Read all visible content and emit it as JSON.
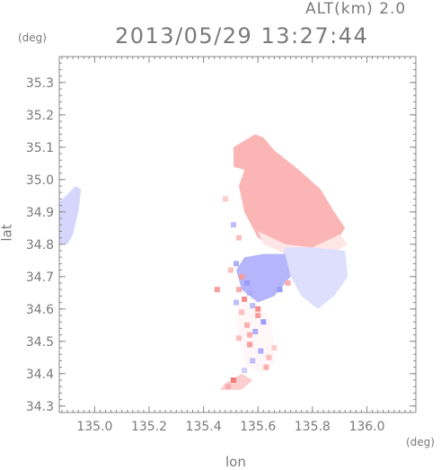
{
  "header": {
    "altitude": "ALT(km) 2.0",
    "datetime": "2013/05/29 13:27:44"
  },
  "chart_data": {
    "type": "heatmap",
    "title": "2013/05/29 13:27:44",
    "subtitle": "ALT(km) 2.0",
    "xlabel": "lon",
    "ylabel": "lat",
    "x_unit": "(deg)",
    "y_unit": "(deg)",
    "xlim": [
      134.87,
      136.18
    ],
    "ylim": [
      34.28,
      35.38
    ],
    "xticks": [
      "135.0",
      "135.2",
      "135.4",
      "135.6",
      "135.8",
      "136.0"
    ],
    "xtick_values": [
      135.0,
      135.2,
      135.4,
      135.6,
      135.8,
      136.0
    ],
    "yticks": [
      "34.3",
      "34.4",
      "34.5",
      "34.6",
      "34.7",
      "34.8",
      "34.9",
      "35.0",
      "35.1",
      "35.2",
      "35.3"
    ],
    "ytick_values": [
      34.3,
      34.4,
      34.5,
      34.6,
      34.7,
      34.8,
      34.9,
      35.0,
      35.1,
      35.2,
      35.3
    ],
    "colormap": {
      "negative": "#5a5af5",
      "zero": "#ffffff",
      "positive": "#f55a5a"
    },
    "regions": [
      {
        "name": "west-patch",
        "points": [
          [
            134.87,
            34.93
          ],
          [
            134.93,
            34.98
          ],
          [
            134.95,
            34.97
          ],
          [
            134.94,
            34.9
          ],
          [
            134.92,
            34.83
          ],
          [
            134.9,
            34.8
          ],
          [
            134.87,
            34.8
          ]
        ],
        "value": -0.25
      },
      {
        "name": "north-red",
        "points": [
          [
            135.59,
            35.14
          ],
          [
            135.62,
            35.13
          ],
          [
            135.66,
            35.09
          ],
          [
            135.75,
            35.03
          ],
          [
            135.83,
            34.97
          ],
          [
            135.88,
            34.9
          ],
          [
            135.92,
            34.85
          ],
          [
            135.88,
            34.8
          ],
          [
            135.78,
            34.78
          ],
          [
            135.68,
            34.78
          ],
          [
            135.6,
            34.82
          ],
          [
            135.55,
            34.9
          ],
          [
            135.53,
            34.98
          ],
          [
            135.55,
            35.03
          ],
          [
            135.51,
            35.04
          ],
          [
            135.51,
            35.1
          ],
          [
            135.55,
            35.12
          ]
        ],
        "value": 0.45
      },
      {
        "name": "north-red-light",
        "points": [
          [
            135.6,
            34.84
          ],
          [
            135.7,
            34.8
          ],
          [
            135.8,
            34.79
          ],
          [
            135.9,
            34.83
          ],
          [
            135.93,
            34.8
          ],
          [
            135.85,
            34.76
          ],
          [
            135.7,
            34.77
          ],
          [
            135.62,
            34.8
          ]
        ],
        "value": 0.15
      },
      {
        "name": "east-blue",
        "points": [
          [
            135.7,
            34.79
          ],
          [
            135.8,
            34.79
          ],
          [
            135.92,
            34.78
          ],
          [
            135.93,
            34.7
          ],
          [
            135.88,
            34.64
          ],
          [
            135.82,
            34.6
          ],
          [
            135.76,
            34.64
          ],
          [
            135.72,
            34.7
          ],
          [
            135.68,
            34.74
          ]
        ],
        "value": -0.2
      },
      {
        "name": "central-blue",
        "points": [
          [
            135.55,
            34.76
          ],
          [
            135.62,
            34.77
          ],
          [
            135.7,
            34.77
          ],
          [
            135.72,
            34.7
          ],
          [
            135.66,
            34.64
          ],
          [
            135.6,
            34.62
          ],
          [
            135.54,
            34.66
          ],
          [
            135.52,
            34.72
          ]
        ],
        "value": -0.45
      },
      {
        "name": "south-speckle",
        "points": [
          [
            135.53,
            34.62
          ],
          [
            135.58,
            34.62
          ],
          [
            135.64,
            34.58
          ],
          [
            135.66,
            34.5
          ],
          [
            135.66,
            34.43
          ],
          [
            135.62,
            34.4
          ],
          [
            135.56,
            34.42
          ],
          [
            135.54,
            34.48
          ],
          [
            135.52,
            34.56
          ]
        ],
        "value": 0.05
      },
      {
        "name": "south-tail",
        "points": [
          [
            135.48,
            34.37
          ],
          [
            135.54,
            34.4
          ],
          [
            135.58,
            34.38
          ],
          [
            135.54,
            34.35
          ],
          [
            135.46,
            34.35
          ]
        ],
        "value": 0.3
      }
    ],
    "speckles": [
      [
        135.54,
        34.7,
        0.6
      ],
      [
        135.56,
        34.68,
        -0.6
      ],
      [
        135.53,
        34.66,
        0.5
      ],
      [
        135.57,
        34.65,
        -0.5
      ],
      [
        135.55,
        34.63,
        0.7
      ],
      [
        135.58,
        34.61,
        -0.4
      ],
      [
        135.54,
        34.59,
        0.4
      ],
      [
        135.6,
        34.58,
        0.6
      ],
      [
        135.62,
        34.56,
        -0.6
      ],
      [
        135.56,
        34.55,
        0.5
      ],
      [
        135.59,
        34.53,
        -0.5
      ],
      [
        135.53,
        34.51,
        0.4
      ],
      [
        135.57,
        34.49,
        0.6
      ],
      [
        135.61,
        34.47,
        -0.5
      ],
      [
        135.64,
        34.45,
        0.4
      ],
      [
        135.58,
        34.44,
        -0.4
      ],
      [
        135.63,
        34.42,
        0.5
      ],
      [
        135.55,
        34.41,
        -0.3
      ],
      [
        135.51,
        34.38,
        0.8
      ],
      [
        135.49,
        34.36,
        0.5
      ],
      [
        135.52,
        34.74,
        -0.5
      ],
      [
        135.5,
        34.72,
        0.4
      ],
      [
        135.68,
        34.66,
        -0.6
      ],
      [
        135.71,
        34.68,
        0.5
      ],
      [
        135.6,
        34.6,
        0.7
      ],
      [
        135.52,
        34.62,
        -0.4
      ],
      [
        135.66,
        34.48,
        0.3
      ],
      [
        135.45,
        34.66,
        0.6
      ],
      [
        135.51,
        34.86,
        -0.4
      ],
      [
        135.53,
        34.82,
        0.4
      ],
      [
        135.48,
        34.94,
        0.3
      ],
      [
        135.57,
        34.52,
        0.5
      ]
    ]
  }
}
